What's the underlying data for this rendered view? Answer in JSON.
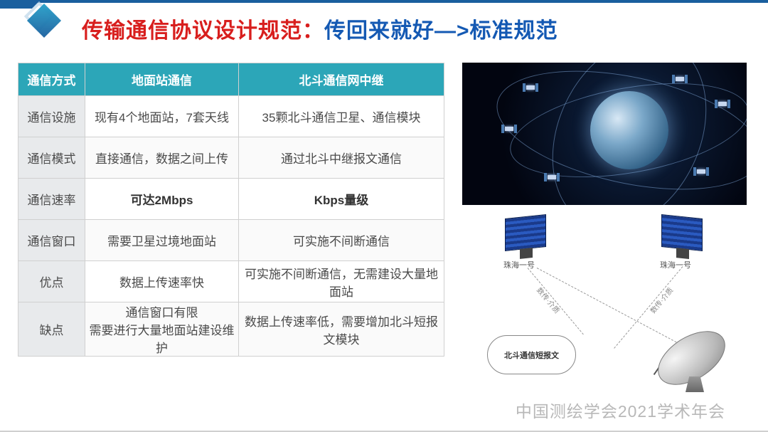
{
  "title": {
    "part1": "传输通信协议设计规范：",
    "part2": "传回来就好—>标准规范"
  },
  "table": {
    "header": [
      "通信方式",
      "地面站通信",
      "北斗通信网中继"
    ],
    "rows": [
      {
        "h": "通信设施",
        "c1": "现有4个地面站，7套天线",
        "c2": "35颗北斗通信卫星、通信模块",
        "bold": false
      },
      {
        "h": "通信模式",
        "c1": "直接通信，数据之间上传",
        "c2": "通过北斗中继报文通信",
        "bold": false
      },
      {
        "h": "通信速率",
        "c1": "可达2Mbps",
        "c2": "Kbps量级",
        "bold": true
      },
      {
        "h": "通信窗口",
        "c1": "需要卫星过境地面站",
        "c2": "可实施不间断通信",
        "bold": false
      },
      {
        "h": "优点",
        "c1": "数据上传速率快",
        "c2": "可实施不间断通信，无需建设大量地面站",
        "bold": false
      },
      {
        "h": "缺点",
        "c1": "通信窗口有限\n需要进行大量地面站建设维护",
        "c2": "数据上传速率低，需要增加北斗短报文模块",
        "bold": false
      }
    ]
  },
  "diagram": {
    "sat_left_label": "珠海一号",
    "sat_right_label": "珠海一号",
    "cloud_label": "北斗通信短报文",
    "link_label": "数传·介质"
  },
  "watermark": "中国测绘学会2021学术年会",
  "colors": {
    "header_bg": "#2ca6b8",
    "title_red": "#d81e1d",
    "title_blue": "#1459b3",
    "accent": "#1a5f9e"
  }
}
